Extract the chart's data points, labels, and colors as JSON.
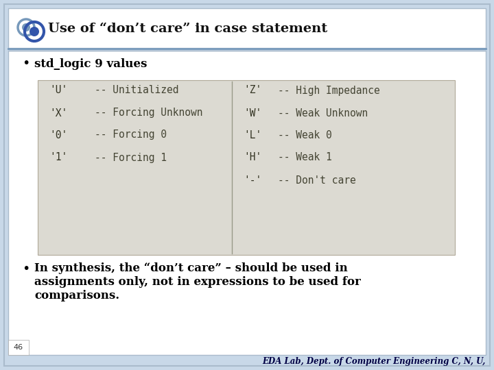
{
  "title": "Use of “don’t care” in case statement",
  "bullet1": "std_logic 9 values",
  "bullet2_line1": "In synthesis, the “don’t care” – should be used in",
  "bullet2_line2": "assignments only, not in expressions to be used for",
  "bullet2_line3": "comparisons.",
  "footer": "EDA Lab, Dept. of Computer Engineering C, N, U,",
  "slide_number": "46",
  "bg_color": "#c8d8e8",
  "content_bg": "#ffffff",
  "code_bg": "#dcdad2",
  "header_line_color1": "#7799bb",
  "header_line_color2": "#aabbcc",
  "left_col": [
    [
      "'U'",
      "-- Unitialized"
    ],
    [
      "'X'",
      "-- Forcing Unknown"
    ],
    [
      "'0'",
      "-- Forcing 0"
    ],
    [
      "'1'",
      "-- Forcing 1"
    ]
  ],
  "right_col": [
    [
      "'Z'",
      "-- High Impedance"
    ],
    [
      "'W'",
      "-- Weak Unknown"
    ],
    [
      "'L'",
      "-- Weak 0"
    ],
    [
      "'H'",
      "-- Weak 1"
    ],
    [
      "'-'",
      "-- Don't care"
    ]
  ]
}
